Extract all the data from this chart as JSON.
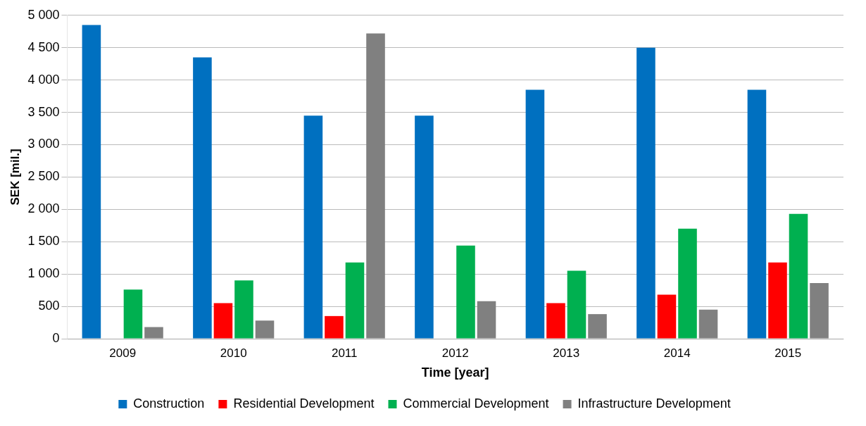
{
  "chart_data": {
    "type": "bar",
    "xlabel": "Time [year]",
    "ylabel": "SEK [mil.]",
    "categories": [
      "2009",
      "2010",
      "2011",
      "2012",
      "2013",
      "2014",
      "2015"
    ],
    "series": [
      {
        "name": "Construction",
        "color": "#0070c0",
        "values": [
          4850,
          4350,
          3450,
          3450,
          3850,
          4500,
          3850
        ]
      },
      {
        "name": "Residential Development",
        "color": "#ff0000",
        "values": [
          0,
          550,
          350,
          0,
          550,
          680,
          1180
        ]
      },
      {
        "name": "Commercial Development",
        "color": "#00b050",
        "values": [
          760,
          900,
          1180,
          1440,
          1050,
          1700,
          1930
        ]
      },
      {
        "name": "Infrastructure Development",
        "color": "#808080",
        "values": [
          180,
          280,
          4720,
          580,
          380,
          450,
          860
        ]
      }
    ],
    "ylim": [
      0,
      5000
    ],
    "yticks": [
      0,
      500,
      {
        "value": 1000,
        "label": "1 000"
      },
      {
        "value": 1500,
        "label": "1 500"
      },
      {
        "value": 2000,
        "label": "2 000"
      },
      {
        "value": 2500,
        "label": "2 500"
      },
      {
        "value": 3000,
        "label": "3 000"
      },
      {
        "value": 3500,
        "label": "3 500"
      },
      {
        "value": 4000,
        "label": "4 000"
      },
      {
        "value": 4500,
        "label": "4 500"
      },
      {
        "value": 5000,
        "label": "5 000"
      }
    ],
    "grid": "y",
    "legend": "bottom"
  }
}
